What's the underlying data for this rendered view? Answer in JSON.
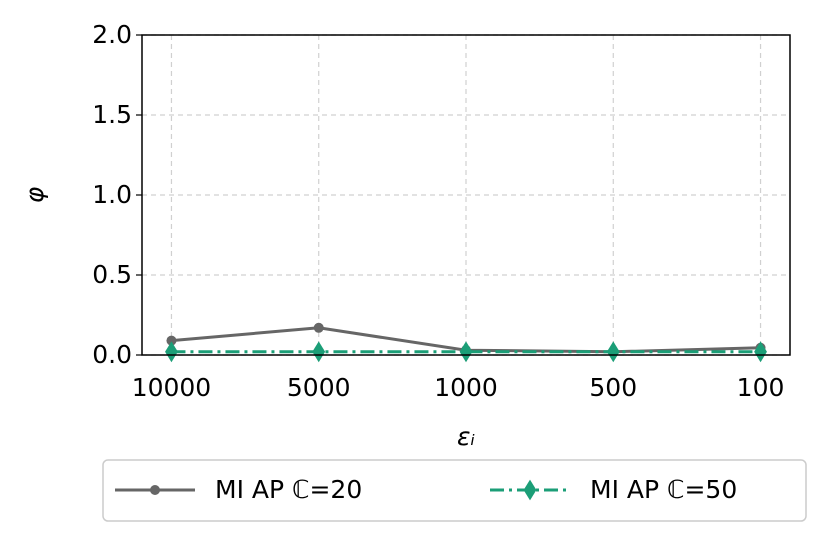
{
  "chart_data": {
    "type": "line",
    "x_label": "εᵢ",
    "y_label": "φ",
    "categories": [
      "10000",
      "5000",
      "1000",
      "500",
      "100"
    ],
    "series": [
      {
        "name": "MI AP ℂ=20",
        "color": "#666666",
        "values": [
          0.09,
          0.17,
          0.03,
          0.02,
          0.045
        ]
      },
      {
        "name": "MI AP ℂ=50",
        "color": "#1b9e77",
        "values": [
          0.02,
          0.02,
          0.02,
          0.02,
          0.02
        ]
      }
    ],
    "ylim": [
      0,
      2
    ],
    "yticks": [
      {
        "value": 0,
        "label": "0.0"
      },
      {
        "value": 0.5,
        "label": "0.5"
      },
      {
        "value": 1,
        "label": "1.0"
      },
      {
        "value": 1.5,
        "label": "1.5"
      },
      {
        "value": 2,
        "label": "2.0"
      }
    ],
    "grid": true,
    "legend": "bottom"
  }
}
